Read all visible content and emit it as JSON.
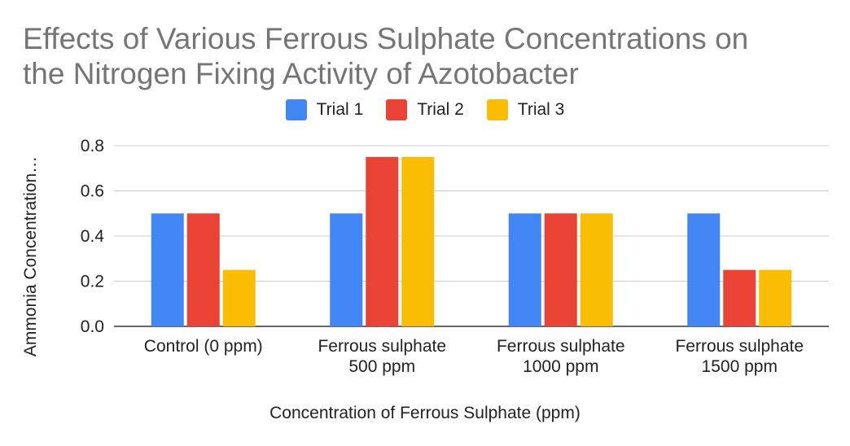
{
  "chart_data": {
    "type": "bar",
    "title": "Effects of Various Ferrous Sulphate Concentrations on\nthe Nitrogen Fixing Activity of Azotobacter",
    "xlabel": "Concentration of Ferrous Sulphate (ppm)",
    "ylabel": "Ammonia Concentration…",
    "categories": [
      "Control (0 ppm)",
      "Ferrous sulphate 500 ppm",
      "Ferrous sulphate 1000 ppm",
      "Ferrous sulphate 1500 ppm"
    ],
    "category_lines": [
      [
        "Control (0 ppm)"
      ],
      [
        "Ferrous sulphate",
        "500 ppm"
      ],
      [
        "Ferrous sulphate",
        "1000 ppm"
      ],
      [
        "Ferrous sulphate",
        "1500 ppm"
      ]
    ],
    "series": [
      {
        "name": "Trial 1",
        "color": "#4285F4",
        "values": [
          0.5,
          0.5,
          0.5,
          0.5
        ]
      },
      {
        "name": "Trial 2",
        "color": "#EA4335",
        "values": [
          0.5,
          0.75,
          0.5,
          0.25
        ]
      },
      {
        "name": "Trial 3",
        "color": "#FBBC04",
        "values": [
          0.25,
          0.75,
          0.5,
          0.25
        ]
      }
    ],
    "ylim": [
      0,
      0.8
    ],
    "yticks": [
      "0.0",
      "0.2",
      "0.4",
      "0.6",
      "0.8"
    ],
    "grid": true,
    "legend_position": "top"
  }
}
